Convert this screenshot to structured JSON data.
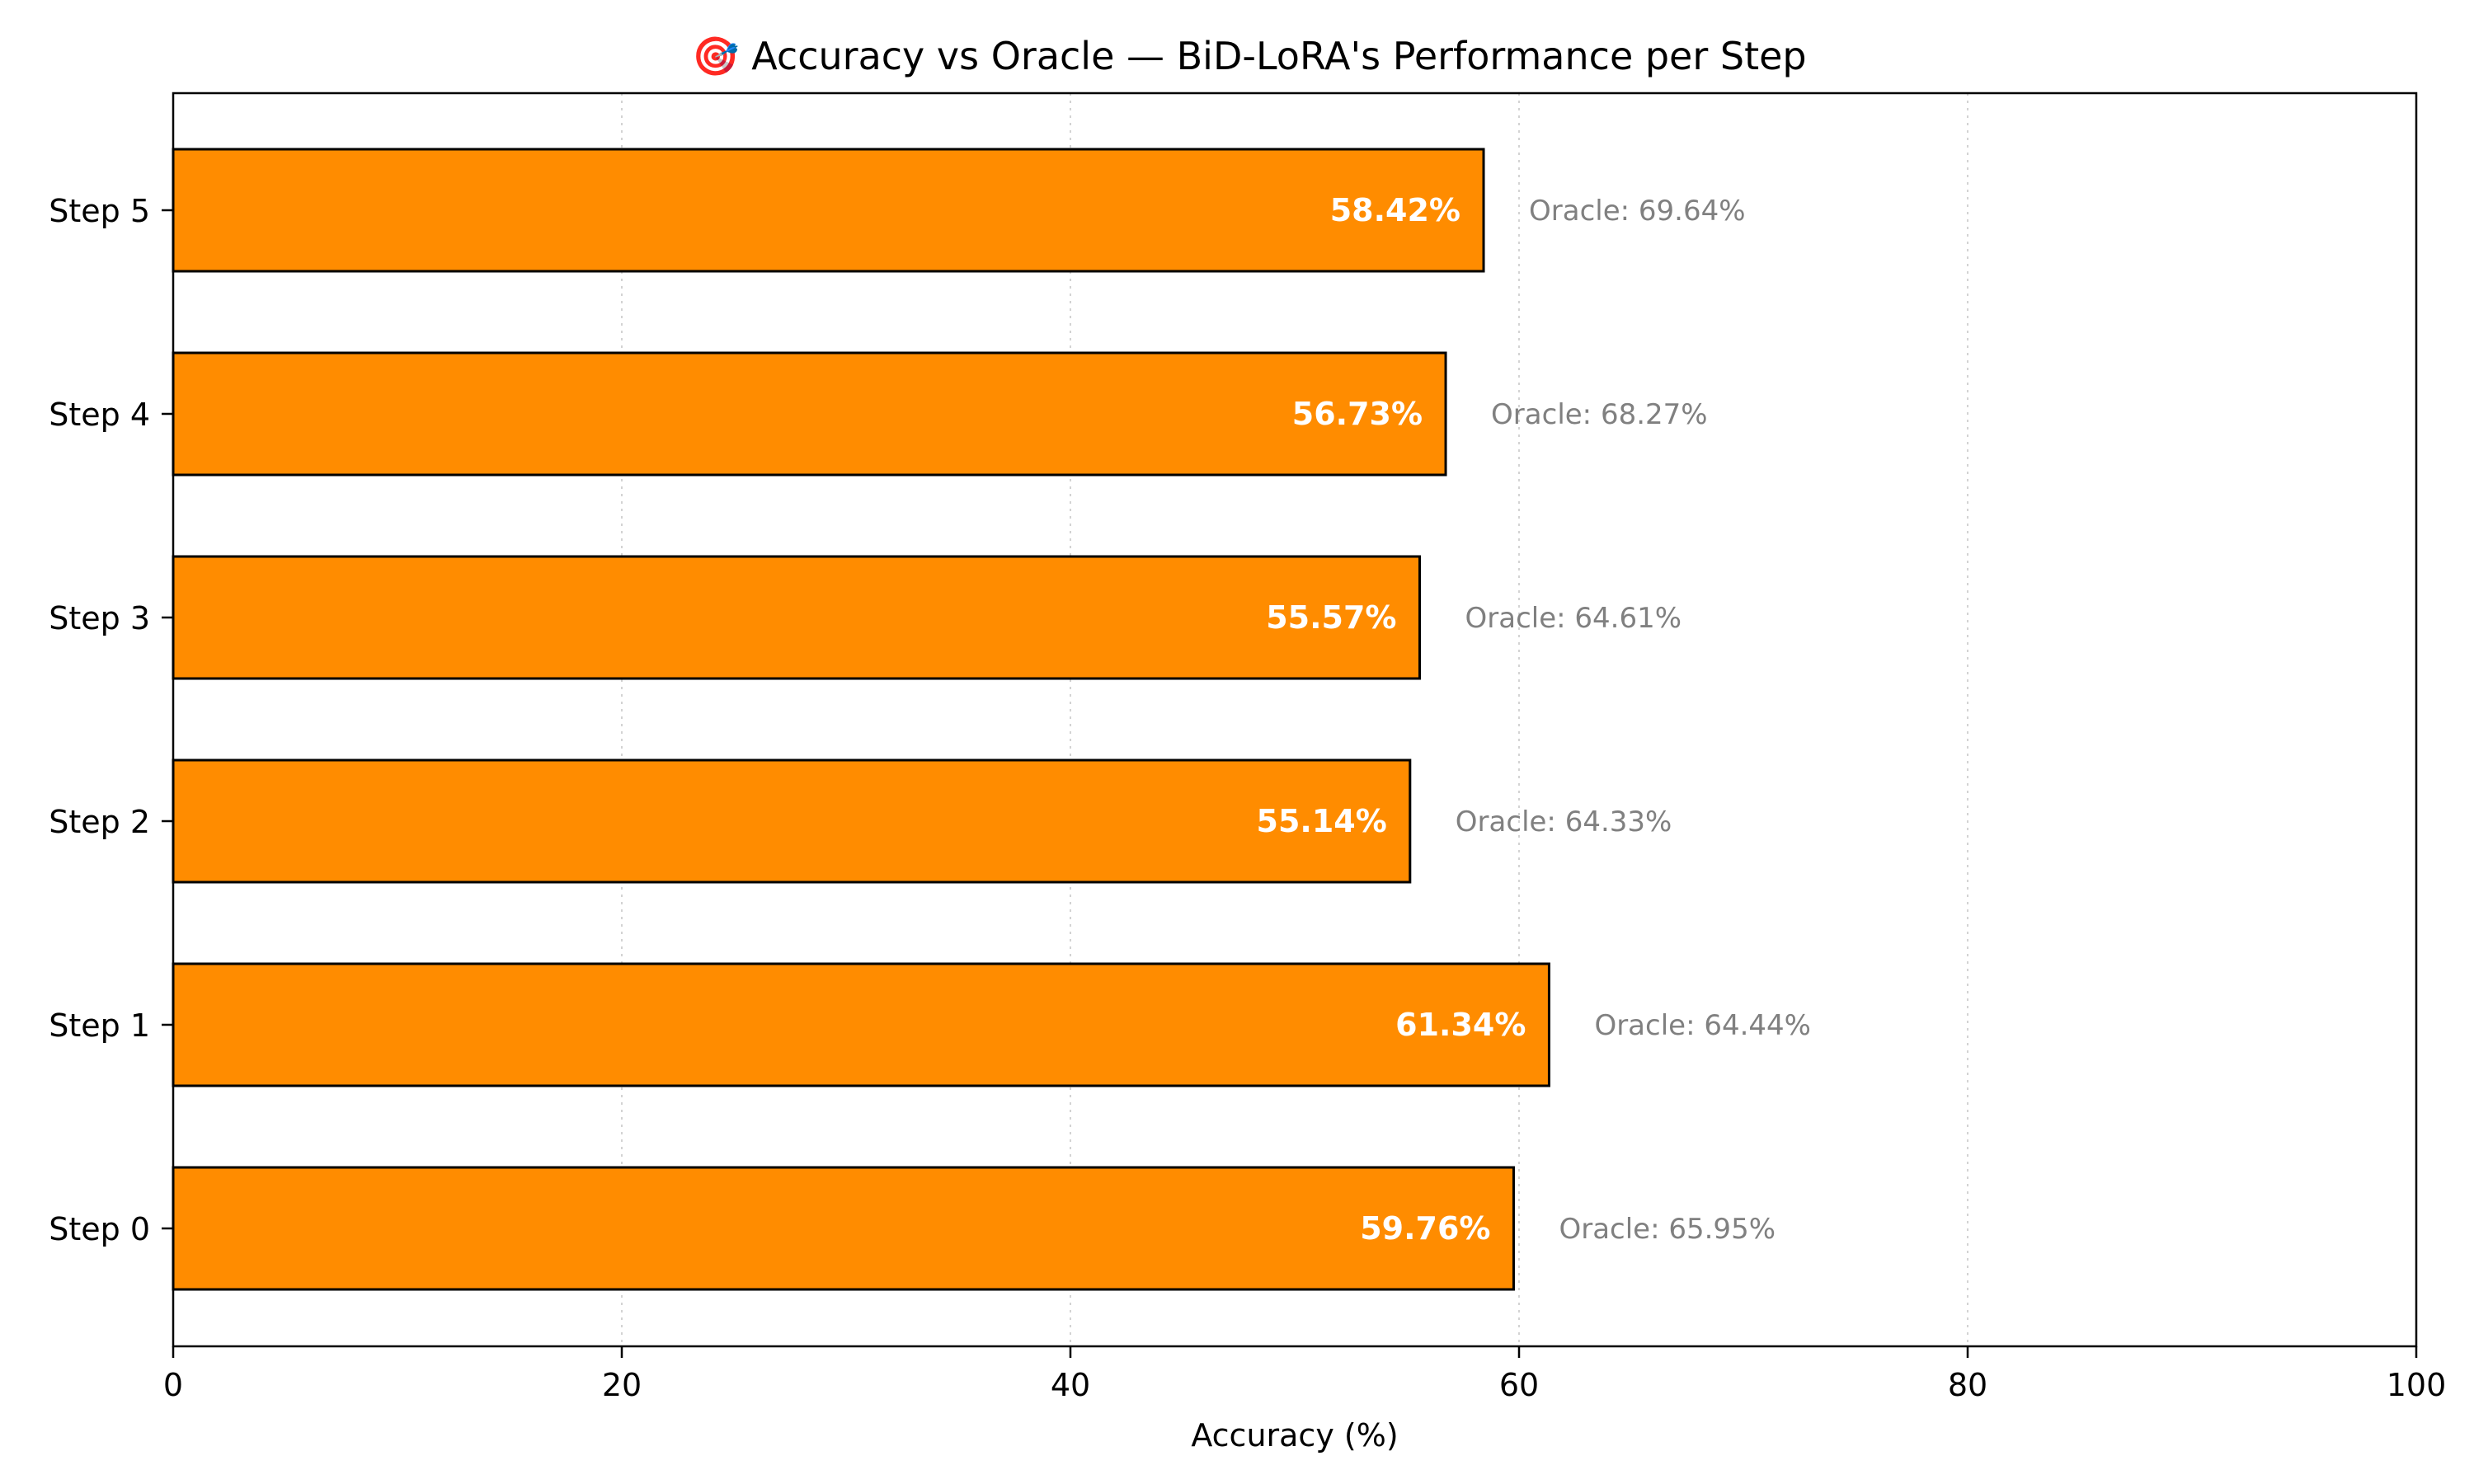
{
  "chart_data": {
    "type": "bar",
    "orientation": "horizontal",
    "title": "🎯 Accuracy vs Oracle — BiD-LoRA's Performance per Step",
    "xlabel": "Accuracy (%)",
    "ylabel": "",
    "xlim": [
      0,
      100
    ],
    "x_ticks": [
      "0",
      "20",
      "40",
      "60",
      "80",
      "100"
    ],
    "categories": [
      "Step 0",
      "Step 1",
      "Step 2",
      "Step 3",
      "Step 4",
      "Step 5"
    ],
    "values": [
      59.76,
      61.34,
      55.14,
      55.57,
      56.73,
      58.42
    ],
    "value_labels": [
      "59.76%",
      "61.34%",
      "55.14%",
      "55.57%",
      "56.73%",
      "58.42%"
    ],
    "oracle_values": [
      65.95,
      64.44,
      64.33,
      64.61,
      68.27,
      69.64
    ],
    "oracle_labels": [
      "Oracle: 65.95%",
      "Oracle: 64.44%",
      "Oracle: 64.33%",
      "Oracle: 64.61%",
      "Oracle: 68.27%",
      "Oracle: 69.64%"
    ],
    "grid": "vertical dotted",
    "colors": {
      "bar": "#ff8c00",
      "edge": "#000000",
      "value_text": "#ffffff",
      "oracle_text": "#808080",
      "grid": "#d3d3d3"
    }
  }
}
